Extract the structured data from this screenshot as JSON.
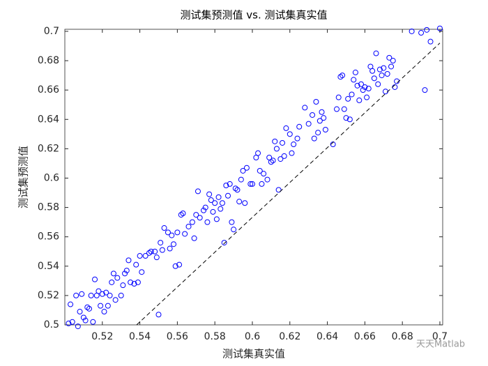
{
  "chart_data": {
    "type": "scatter",
    "title": "测试集预测值 vs. 测试集真实值",
    "xlabel": "测试集真实值",
    "ylabel": "测试集预测值",
    "watermark": "天天Matlab",
    "xlim": [
      0.5,
      0.7015
    ],
    "ylim": [
      0.5,
      0.7014
    ],
    "xticks": [
      0.52,
      0.54,
      0.56,
      0.58,
      0.6,
      0.62,
      0.64,
      0.66,
      0.68,
      0.7
    ],
    "yticks": [
      0.5,
      0.52,
      0.54,
      0.56,
      0.58,
      0.6,
      0.62,
      0.64,
      0.66,
      0.68,
      0.7
    ],
    "series": [
      {
        "type": "scatter",
        "color": "#0000ff",
        "x": [
          0.502,
          0.503,
          0.504,
          0.506,
          0.507,
          0.508,
          0.509,
          0.51,
          0.511,
          0.512,
          0.513,
          0.514,
          0.515,
          0.516,
          0.517,
          0.518,
          0.519,
          0.52,
          0.521,
          0.522,
          0.523,
          0.524,
          0.525,
          0.526,
          0.527,
          0.528,
          0.53,
          0.531,
          0.532,
          0.533,
          0.534,
          0.535,
          0.537,
          0.538,
          0.539,
          0.54,
          0.541,
          0.543,
          0.545,
          0.546,
          0.548,
          0.549,
          0.55,
          0.551,
          0.552,
          0.553,
          0.555,
          0.556,
          0.557,
          0.558,
          0.559,
          0.56,
          0.561,
          0.562,
          0.563,
          0.564,
          0.566,
          0.568,
          0.569,
          0.57,
          0.571,
          0.572,
          0.574,
          0.575,
          0.576,
          0.577,
          0.578,
          0.579,
          0.58,
          0.581,
          0.582,
          0.583,
          0.584,
          0.585,
          0.586,
          0.587,
          0.588,
          0.589,
          0.59,
          0.591,
          0.592,
          0.593,
          0.594,
          0.595,
          0.596,
          0.597,
          0.599,
          0.6,
          0.602,
          0.603,
          0.604,
          0.605,
          0.606,
          0.608,
          0.609,
          0.61,
          0.611,
          0.612,
          0.613,
          0.614,
          0.615,
          0.616,
          0.617,
          0.618,
          0.62,
          0.621,
          0.622,
          0.624,
          0.625,
          0.628,
          0.63,
          0.632,
          0.633,
          0.634,
          0.635,
          0.636,
          0.637,
          0.638,
          0.639,
          0.643,
          0.645,
          0.646,
          0.647,
          0.648,
          0.649,
          0.65,
          0.651,
          0.652,
          0.653,
          0.654,
          0.655,
          0.656,
          0.657,
          0.658,
          0.659,
          0.66,
          0.661,
          0.662,
          0.663,
          0.664,
          0.665,
          0.666,
          0.667,
          0.668,
          0.669,
          0.67,
          0.671,
          0.672,
          0.673,
          0.674,
          0.675,
          0.676,
          0.677,
          0.685,
          0.69,
          0.692,
          0.693,
          0.695,
          0.7
        ],
        "values": [
          0.501,
          0.514,
          0.502,
          0.52,
          0.499,
          0.509,
          0.521,
          0.505,
          0.503,
          0.512,
          0.511,
          0.52,
          0.502,
          0.531,
          0.52,
          0.523,
          0.513,
          0.521,
          0.509,
          0.522,
          0.513,
          0.52,
          0.529,
          0.535,
          0.517,
          0.532,
          0.52,
          0.527,
          0.535,
          0.537,
          0.544,
          0.529,
          0.528,
          0.541,
          0.529,
          0.547,
          0.536,
          0.547,
          0.549,
          0.55,
          0.55,
          0.546,
          0.507,
          0.556,
          0.551,
          0.566,
          0.563,
          0.552,
          0.561,
          0.555,
          0.54,
          0.563,
          0.541,
          0.575,
          0.576,
          0.562,
          0.567,
          0.57,
          0.559,
          0.575,
          0.591,
          0.573,
          0.578,
          0.58,
          0.57,
          0.589,
          0.585,
          0.577,
          0.583,
          0.572,
          0.587,
          0.579,
          0.583,
          0.556,
          0.595,
          0.588,
          0.596,
          0.57,
          0.565,
          0.593,
          0.592,
          0.584,
          0.599,
          0.605,
          0.583,
          0.607,
          0.596,
          0.596,
          0.614,
          0.617,
          0.605,
          0.596,
          0.603,
          0.599,
          0.614,
          0.611,
          0.612,
          0.625,
          0.62,
          0.592,
          0.613,
          0.624,
          0.615,
          0.634,
          0.63,
          0.617,
          0.623,
          0.627,
          0.635,
          0.648,
          0.637,
          0.643,
          0.627,
          0.652,
          0.631,
          0.639,
          0.645,
          0.641,
          0.633,
          0.623,
          0.647,
          0.655,
          0.669,
          0.67,
          0.647,
          0.641,
          0.654,
          0.64,
          0.657,
          0.667,
          0.672,
          0.663,
          0.653,
          0.664,
          0.66,
          0.662,
          0.655,
          0.661,
          0.676,
          0.673,
          0.668,
          0.685,
          0.664,
          0.674,
          0.67,
          0.675,
          0.659,
          0.671,
          0.682,
          0.676,
          0.68,
          0.662,
          0.666,
          0.7,
          0.699,
          0.66,
          0.701,
          0.693,
          0.702
        ]
      },
      {
        "type": "line",
        "color": "#000000",
        "style": "dashed",
        "x": [
          0.5383,
          0.7
        ],
        "values": [
          0.5,
          0.692
        ]
      }
    ]
  }
}
